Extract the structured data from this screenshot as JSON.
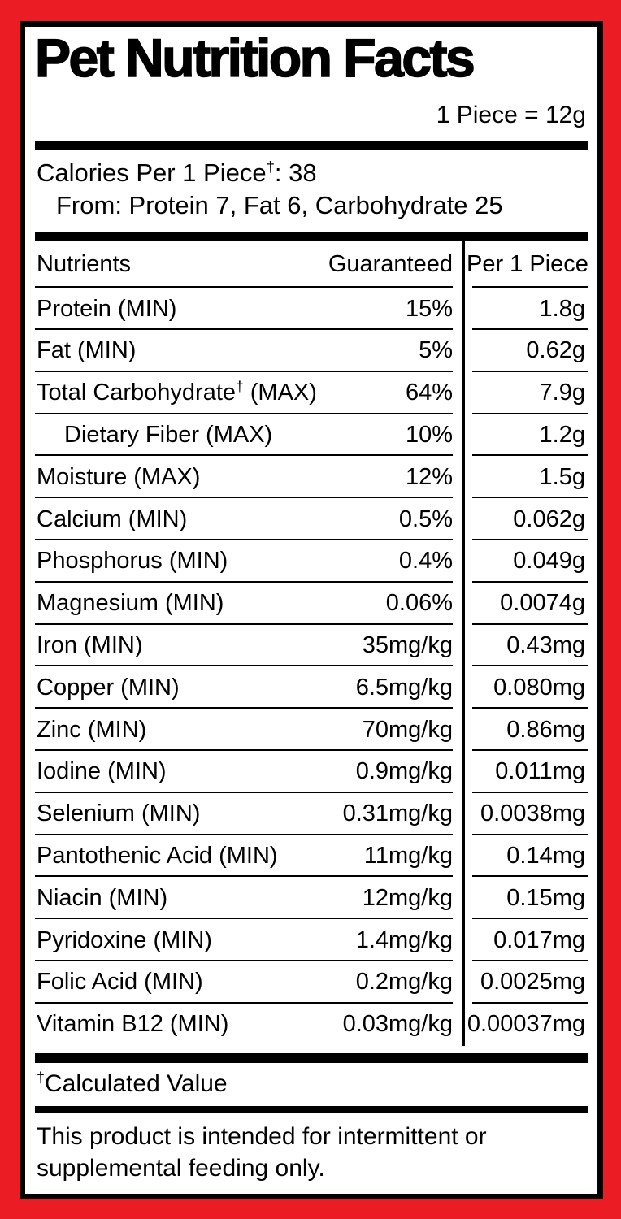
{
  "colors": {
    "frame_red": "#EC1C24",
    "ink": "#000000",
    "paper": "#FFFFFF"
  },
  "header": {
    "title": "Pet Nutrition Facts",
    "serving_size": "1 Piece = 12g"
  },
  "calories": {
    "line1": "Calories Per 1 Piece†: 38",
    "line2": "From: Protein 7, Fat 6, Carbohydrate 25"
  },
  "table": {
    "columns": [
      "Nutrients",
      "Guaranteed",
      "Per 1 Piece"
    ],
    "rows": [
      {
        "label": "Protein (MIN)",
        "guaranteed": "15%",
        "per_piece": "1.8g",
        "indent": false
      },
      {
        "label": "Fat (MIN)",
        "guaranteed": "5%",
        "per_piece": "0.62g",
        "indent": false
      },
      {
        "label": "Total Carbohydrate† (MAX)",
        "guaranteed": "64%",
        "per_piece": "7.9g",
        "indent": false
      },
      {
        "label": "Dietary Fiber (MAX)",
        "guaranteed": "10%",
        "per_piece": "1.2g",
        "indent": true
      },
      {
        "label": "Moisture (MAX)",
        "guaranteed": "12%",
        "per_piece": "1.5g",
        "indent": false
      },
      {
        "label": "Calcium (MIN)",
        "guaranteed": "0.5%",
        "per_piece": "0.062g",
        "indent": false
      },
      {
        "label": "Phosphorus (MIN)",
        "guaranteed": "0.4%",
        "per_piece": "0.049g",
        "indent": false
      },
      {
        "label": "Magnesium (MIN)",
        "guaranteed": "0.06%",
        "per_piece": "0.0074g",
        "indent": false
      },
      {
        "label": "Iron (MIN)",
        "guaranteed": "35mg/kg",
        "per_piece": "0.43mg",
        "indent": false
      },
      {
        "label": "Copper (MIN)",
        "guaranteed": "6.5mg/kg",
        "per_piece": "0.080mg",
        "indent": false
      },
      {
        "label": "Zinc (MIN)",
        "guaranteed": "70mg/kg",
        "per_piece": "0.86mg",
        "indent": false
      },
      {
        "label": "Iodine (MIN)",
        "guaranteed": "0.9mg/kg",
        "per_piece": "0.011mg",
        "indent": false
      },
      {
        "label": "Selenium (MIN)",
        "guaranteed": "0.31mg/kg",
        "per_piece": "0.0038mg",
        "indent": false
      },
      {
        "label": "Pantothenic Acid (MIN)",
        "guaranteed": "11mg/kg",
        "per_piece": "0.14mg",
        "indent": false
      },
      {
        "label": "Niacin (MIN)",
        "guaranteed": "12mg/kg",
        "per_piece": "0.15mg",
        "indent": false
      },
      {
        "label": "Pyridoxine (MIN)",
        "guaranteed": "1.4mg/kg",
        "per_piece": "0.017mg",
        "indent": false
      },
      {
        "label": "Folic Acid (MIN)",
        "guaranteed": "0.2mg/kg",
        "per_piece": "0.0025mg",
        "indent": false
      },
      {
        "label": "Vitamin B12 (MIN)",
        "guaranteed": "0.03mg/kg",
        "per_piece": "0.00037mg",
        "indent": false
      }
    ]
  },
  "footnote": "†Calculated Value",
  "disclaimer": "This product is intended for intermittent or supplemental feeding only."
}
